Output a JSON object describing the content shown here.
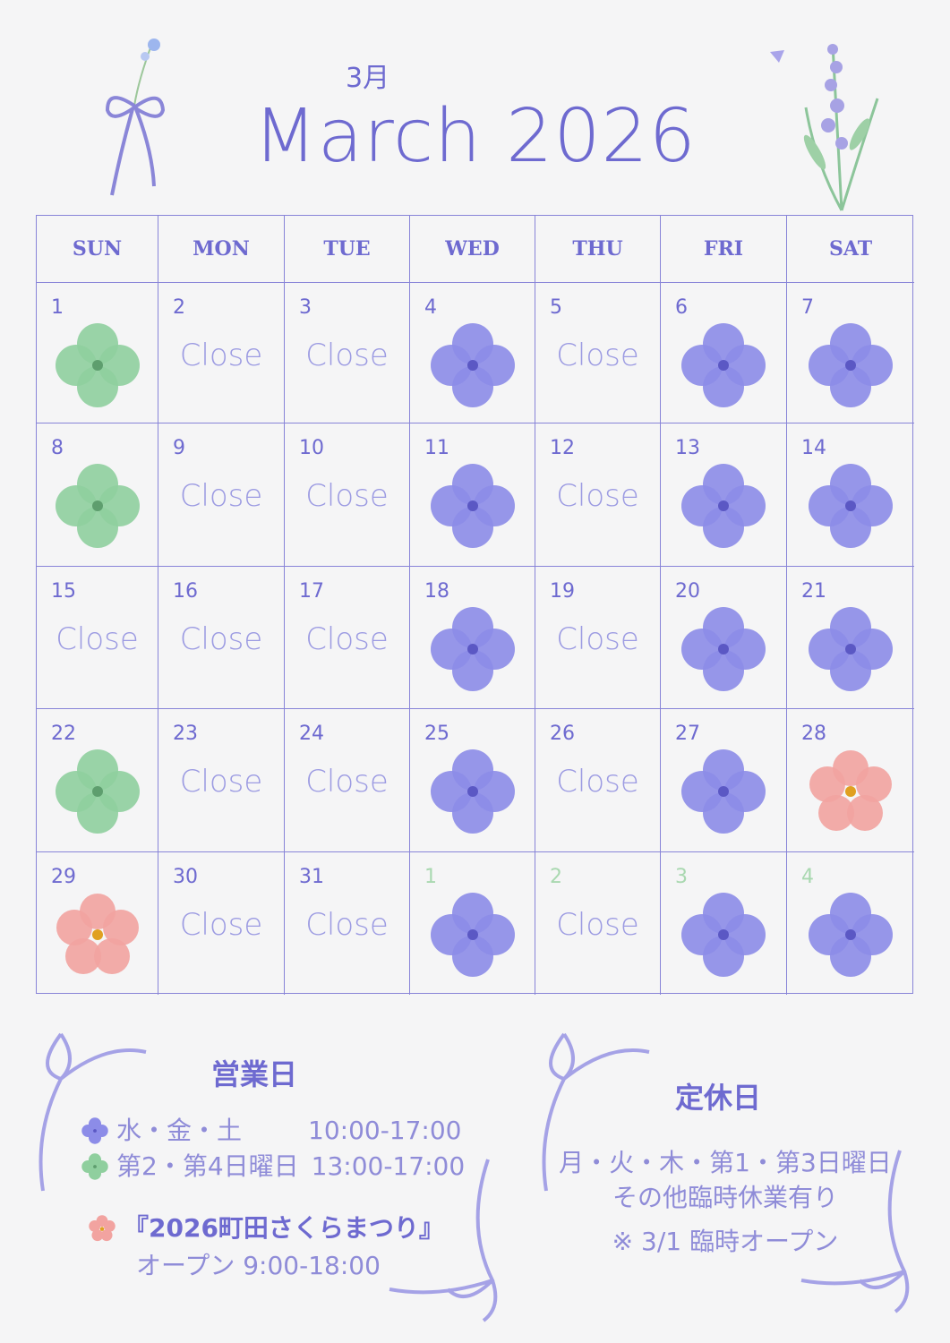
{
  "header": {
    "month_jp": "3月",
    "title": "March 2026"
  },
  "colors": {
    "accent": "#6e6ad0",
    "grid": "#8884d8",
    "close_text": "#9c9be2",
    "open_flower": "#8c8ce8",
    "sunday_clover": "#8fcf9e",
    "festival_sakura": "#f2a3a0",
    "next_month_number": "#a9d8b0"
  },
  "weekdays": [
    "SUN",
    "MON",
    "TUE",
    "WED",
    "THU",
    "FRI",
    "SAT"
  ],
  "close_label": "Close",
  "weeks": [
    [
      {
        "day": "1",
        "type": "clover"
      },
      {
        "day": "2",
        "type": "close"
      },
      {
        "day": "3",
        "type": "close"
      },
      {
        "day": "4",
        "type": "flower"
      },
      {
        "day": "5",
        "type": "close"
      },
      {
        "day": "6",
        "type": "flower"
      },
      {
        "day": "7",
        "type": "flower"
      }
    ],
    [
      {
        "day": "8",
        "type": "clover"
      },
      {
        "day": "9",
        "type": "close"
      },
      {
        "day": "10",
        "type": "close"
      },
      {
        "day": "11",
        "type": "flower"
      },
      {
        "day": "12",
        "type": "close"
      },
      {
        "day": "13",
        "type": "flower"
      },
      {
        "day": "14",
        "type": "flower"
      }
    ],
    [
      {
        "day": "15",
        "type": "close"
      },
      {
        "day": "16",
        "type": "close"
      },
      {
        "day": "17",
        "type": "close"
      },
      {
        "day": "18",
        "type": "flower"
      },
      {
        "day": "19",
        "type": "close"
      },
      {
        "day": "20",
        "type": "flower"
      },
      {
        "day": "21",
        "type": "flower"
      }
    ],
    [
      {
        "day": "22",
        "type": "clover"
      },
      {
        "day": "23",
        "type": "close"
      },
      {
        "day": "24",
        "type": "close"
      },
      {
        "day": "25",
        "type": "flower"
      },
      {
        "day": "26",
        "type": "close"
      },
      {
        "day": "27",
        "type": "flower"
      },
      {
        "day": "28",
        "type": "sakura"
      }
    ],
    [
      {
        "day": "29",
        "type": "sakura"
      },
      {
        "day": "30",
        "type": "close"
      },
      {
        "day": "31",
        "type": "close"
      },
      {
        "day": "1",
        "type": "flower",
        "next_month": true
      },
      {
        "day": "2",
        "type": "close",
        "next_month": true
      },
      {
        "day": "3",
        "type": "flower",
        "next_month": true
      },
      {
        "day": "4",
        "type": "flower",
        "next_month": true
      }
    ]
  ],
  "open_days": {
    "title": "営業日",
    "rows": [
      {
        "icon": "blue-flower-icon",
        "days": "水・金・土",
        "hours": "10:00-17:00"
      },
      {
        "icon": "green-clover-icon",
        "days": "第2・第4日曜日",
        "hours": "13:00-17:00"
      }
    ],
    "event_name": "『2026町田さくらまつり』",
    "event_hours": "オープン 9:00-18:00"
  },
  "closed_days": {
    "title": "定休日",
    "line1": "月・火・木・第1・第3日曜日",
    "line2": "その他臨時休業有り",
    "note": "※ 3/1 臨時オープン"
  }
}
